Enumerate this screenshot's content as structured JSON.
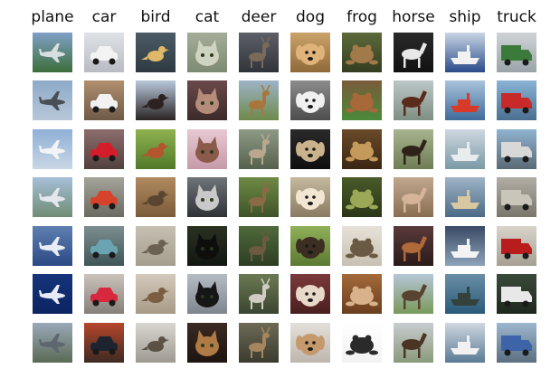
{
  "figure": {
    "classes": [
      {
        "label": "plane",
        "samples": [
          {
            "bg": [
              "#7fa0c6",
              "#3c6e3a"
            ],
            "shape": "plane",
            "fg": "#d8dde2"
          },
          {
            "bg": [
              "#8eaac8",
              "#b7c7d8"
            ],
            "shape": "plane",
            "fg": "#4a4f55"
          },
          {
            "bg": [
              "#8fb0d6",
              "#c9d6e4"
            ],
            "shape": "plane",
            "fg": "#f2f4f6"
          },
          {
            "bg": [
              "#a6bfd8",
              "#6f8d74"
            ],
            "shape": "plane",
            "fg": "#e4e8ee"
          },
          {
            "bg": [
              "#5f7fb0",
              "#2b4a86"
            ],
            "shape": "plane",
            "fg": "#e8edf4"
          },
          {
            "bg": [
              "#15347a",
              "#0b2462"
            ],
            "shape": "plane",
            "fg": "#e6ebf3"
          },
          {
            "bg": [
              "#9aa9b8",
              "#5a6a55"
            ],
            "shape": "plane",
            "fg": "#5e6670"
          }
        ]
      },
      {
        "label": "car",
        "samples": [
          {
            "bg": [
              "#dfe2e6",
              "#b8bcc2"
            ],
            "shape": "car",
            "fg": "#f3f3f3"
          },
          {
            "bg": [
              "#b08f6e",
              "#6f5a47"
            ],
            "shape": "car",
            "fg": "#f2f2f2"
          },
          {
            "bg": [
              "#8c6d6d",
              "#52413d"
            ],
            "shape": "car",
            "fg": "#d41d2b"
          },
          {
            "bg": [
              "#a5a49a",
              "#6b6b62"
            ],
            "shape": "car",
            "fg": "#d7432a"
          },
          {
            "bg": [
              "#7c8e90",
              "#3f5556"
            ],
            "shape": "car",
            "fg": "#6aa4b3"
          },
          {
            "bg": [
              "#cbc3bb",
              "#85807a"
            ],
            "shape": "car",
            "fg": "#d8283e"
          },
          {
            "bg": [
              "#b6462b",
              "#3e2a23"
            ],
            "shape": "car",
            "fg": "#1d2430"
          }
        ]
      },
      {
        "label": "bird",
        "samples": [
          {
            "bg": [
              "#4b5b66",
              "#2e3a40"
            ],
            "shape": "bird",
            "fg": "#e0b86a"
          },
          {
            "bg": [
              "#b9c8db",
              "#2a2424"
            ],
            "shape": "bird",
            "fg": "#2c2222"
          },
          {
            "bg": [
              "#8fb24f",
              "#4f7a2a"
            ],
            "shape": "bird",
            "fg": "#b5552f"
          },
          {
            "bg": [
              "#b08a5f",
              "#7b5b3a"
            ],
            "shape": "bird",
            "fg": "#5a4630"
          },
          {
            "bg": [
              "#c6c0b3",
              "#a59d8d"
            ],
            "shape": "bird",
            "fg": "#6b6253"
          },
          {
            "bg": [
              "#d4c9bb",
              "#a79a86"
            ],
            "shape": "bird",
            "fg": "#7b5e42"
          },
          {
            "bg": [
              "#d8d6d0",
              "#9e9a91"
            ],
            "shape": "bird",
            "fg": "#5b5245"
          }
        ]
      },
      {
        "label": "cat",
        "samples": [
          {
            "bg": [
              "#a4ad98",
              "#7d8a72"
            ],
            "shape": "cat",
            "fg": "#cfd3c2"
          },
          {
            "bg": [
              "#6a4a4a",
              "#3d2a2a"
            ],
            "shape": "cat",
            "fg": "#b58c7a"
          },
          {
            "bg": [
              "#e7c9d2",
              "#c79aa9"
            ],
            "shape": "cat",
            "fg": "#8a5b4a"
          },
          {
            "bg": [
              "#6f7479",
              "#303336"
            ],
            "shape": "cat",
            "fg": "#c9c9c9"
          },
          {
            "bg": [
              "#2b3220",
              "#121612"
            ],
            "shape": "cat",
            "fg": "#0e0e0c"
          },
          {
            "bg": [
              "#b6bcc4",
              "#7e858e"
            ],
            "shape": "cat",
            "fg": "#161616"
          },
          {
            "bg": [
              "#3b2a22",
              "#1d1410"
            ],
            "shape": "cat",
            "fg": "#b07a45"
          }
        ]
      },
      {
        "label": "deer",
        "samples": [
          {
            "bg": [
              "#5d6068",
              "#30343a"
            ],
            "shape": "deer",
            "fg": "#7a6a5a"
          },
          {
            "bg": [
              "#9db3c8",
              "#6d8a4a"
            ],
            "shape": "deer",
            "fg": "#a8763c"
          },
          {
            "bg": [
              "#8d9a86",
              "#55614d"
            ],
            "shape": "deer",
            "fg": "#b9a88e"
          },
          {
            "bg": [
              "#6e8a45",
              "#3e5328"
            ],
            "shape": "deer",
            "fg": "#8b6a46"
          },
          {
            "bg": [
              "#4f6a3b",
              "#2c3d22"
            ],
            "shape": "deer",
            "fg": "#6d5a40"
          },
          {
            "bg": [
              "#6a7a52",
              "#3a4630"
            ],
            "shape": "deer",
            "fg": "#d0ccc4"
          },
          {
            "bg": [
              "#6d6a55",
              "#3a3a2e"
            ],
            "shape": "deer",
            "fg": "#a5865e"
          }
        ]
      },
      {
        "label": "dog",
        "samples": [
          {
            "bg": [
              "#caa36a",
              "#8f6a3a"
            ],
            "shape": "dog",
            "fg": "#e0b37a"
          },
          {
            "bg": [
              "#8c8c8c",
              "#4d4d4d"
            ],
            "shape": "dog",
            "fg": "#f0f0f0"
          },
          {
            "bg": [
              "#2a2a2a",
              "#0f0f0f"
            ],
            "shape": "dog",
            "fg": "#c9b28c"
          },
          {
            "bg": [
              "#c4b89e",
              "#8a7c62"
            ],
            "shape": "dog",
            "fg": "#f1e6d2"
          },
          {
            "bg": [
              "#90b05a",
              "#5b7a32"
            ],
            "shape": "dog",
            "fg": "#3c2e22"
          },
          {
            "bg": [
              "#7a3a3a",
              "#4a1f1f"
            ],
            "shape": "dog",
            "fg": "#e8d8c8"
          },
          {
            "bg": [
              "#e3dfda",
              "#bdb6ae"
            ],
            "shape": "dog",
            "fg": "#c49a6c"
          }
        ]
      },
      {
        "label": "frog",
        "samples": [
          {
            "bg": [
              "#5c6a3b",
              "#343d20"
            ],
            "shape": "frog",
            "fg": "#a27a4a"
          },
          {
            "bg": [
              "#7a5a3a",
              "#4a8a3a"
            ],
            "shape": "frog",
            "fg": "#a8683a"
          },
          {
            "bg": [
              "#6a4a2a",
              "#3a2612"
            ],
            "shape": "frog",
            "fg": "#c49a5a"
          },
          {
            "bg": [
              "#4a5a2a",
              "#2a3616"
            ],
            "shape": "frog",
            "fg": "#9aa858"
          },
          {
            "bg": [
              "#e6e1d8",
              "#c8c0b2"
            ],
            "shape": "frog",
            "fg": "#6a5a44"
          },
          {
            "bg": [
              "#a46a3a",
              "#6a3e1e"
            ],
            "shape": "frog",
            "fg": "#d8b28a"
          },
          {
            "bg": [
              "#ffffff",
              "#f2f2f2"
            ],
            "shape": "frog",
            "fg": "#2a2a2a"
          }
        ]
      },
      {
        "label": "horse",
        "samples": [
          {
            "bg": [
              "#2a2a2a",
              "#111111"
            ],
            "shape": "horse",
            "fg": "#e8e8e8"
          },
          {
            "bg": [
              "#bcc7c9",
              "#7f8f83"
            ],
            "shape": "horse",
            "fg": "#5a2a1a"
          },
          {
            "bg": [
              "#a7b48f",
              "#6f7d55"
            ],
            "shape": "horse",
            "fg": "#2e2218"
          },
          {
            "bg": [
              "#c0a78e",
              "#8a6e52"
            ],
            "shape": "horse",
            "fg": "#d6b49a"
          },
          {
            "bg": [
              "#5a3a3a",
              "#2a1a1a"
            ],
            "shape": "horse",
            "fg": "#b06a3a"
          },
          {
            "bg": [
              "#b5c6d6",
              "#7a9a5a"
            ],
            "shape": "horse",
            "fg": "#5a4230"
          },
          {
            "bg": [
              "#c8ccd0",
              "#8a9a7a"
            ],
            "shape": "horse",
            "fg": "#4a3426"
          }
        ]
      },
      {
        "label": "ship",
        "samples": [
          {
            "bg": [
              "#c9d6e4",
              "#2a4a8a"
            ],
            "shape": "ship",
            "fg": "#f2f2f2"
          },
          {
            "bg": [
              "#a9c3dc",
              "#3e6a9a"
            ],
            "shape": "ship",
            "fg": "#d83a2a"
          },
          {
            "bg": [
              "#cfd7df",
              "#7a9aa6"
            ],
            "shape": "ship",
            "fg": "#e8ecef"
          },
          {
            "bg": [
              "#9fb4c6",
              "#4a6a86"
            ],
            "shape": "ship",
            "fg": "#d8c8a2"
          },
          {
            "bg": [
              "#3a4a66",
              "#8da3b8"
            ],
            "shape": "ship",
            "fg": "#f4f4f4"
          },
          {
            "bg": [
              "#6a8fa6",
              "#2a5a7a"
            ],
            "shape": "ship",
            "fg": "#33423a"
          },
          {
            "bg": [
              "#cfd8e0",
              "#5a7a96"
            ],
            "shape": "ship",
            "fg": "#f1f1f1"
          }
        ]
      },
      {
        "label": "truck",
        "samples": [
          {
            "bg": [
              "#cfd3d6",
              "#9aa4a8"
            ],
            "shape": "truck",
            "fg": "#3a7a3a"
          },
          {
            "bg": [
              "#8ab3d6",
              "#4a6f8f"
            ],
            "shape": "truck",
            "fg": "#c82a2a"
          },
          {
            "bg": [
              "#8fb3d0",
              "#5a6a74"
            ],
            "shape": "truck",
            "fg": "#d8d8d8"
          },
          {
            "bg": [
              "#b0ada4",
              "#7a766c"
            ],
            "shape": "truck",
            "fg": "#c9c5b8"
          },
          {
            "bg": [
              "#d8d4ca",
              "#a5a092"
            ],
            "shape": "truck",
            "fg": "#b81c1c"
          },
          {
            "bg": [
              "#3a4a3a",
              "#1e281e"
            ],
            "shape": "truck",
            "fg": "#e8e8e8"
          },
          {
            "bg": [
              "#9db7cf",
              "#5b6f80"
            ],
            "shape": "truck",
            "fg": "#3d63a8"
          }
        ]
      }
    ]
  }
}
